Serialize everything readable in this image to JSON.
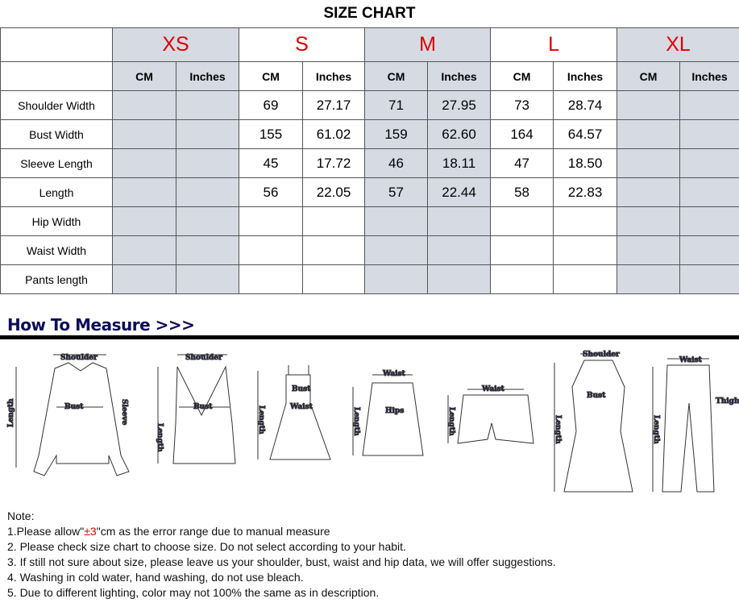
{
  "title": "SIZE CHART",
  "sizes": [
    "XS",
    "S",
    "M",
    "L",
    "XL"
  ],
  "units": [
    "CM",
    "Inches"
  ],
  "rows": [
    {
      "label": "Shoulder Width",
      "values": [
        "",
        "",
        "69",
        "27.17",
        "71",
        "27.95",
        "73",
        "28.74",
        "",
        ""
      ]
    },
    {
      "label": "Bust Width",
      "values": [
        "",
        "",
        "155",
        "61.02",
        "159",
        "62.60",
        "164",
        "64.57",
        "",
        ""
      ]
    },
    {
      "label": "Sleeve Length",
      "values": [
        "",
        "",
        "45",
        "17.72",
        "46",
        "18.11",
        "47",
        "18.50",
        "",
        ""
      ]
    },
    {
      "label": "Length",
      "values": [
        "",
        "",
        "56",
        "22.05",
        "57",
        "22.44",
        "58",
        "22.83",
        "",
        ""
      ]
    },
    {
      "label": "Hip Width",
      "values": [
        "",
        "",
        "",
        "",
        "",
        "",
        "",
        "",
        "",
        ""
      ]
    },
    {
      "label": "Waist Width",
      "values": [
        "",
        "",
        "",
        "",
        "",
        "",
        "",
        "",
        "",
        ""
      ]
    },
    {
      "label": "Pants length",
      "values": [
        "",
        "",
        "",
        "",
        "",
        "",
        "",
        "",
        "",
        ""
      ]
    }
  ],
  "how_to_measure": "How To Measure >>>",
  "illustration_labels": [
    "Shoulder",
    "Bust",
    "Sleeve",
    "Length",
    "Waist",
    "Hips",
    "Thigh"
  ],
  "notes": {
    "heading": "Note:",
    "n1_pre": "1.Please allow\"",
    "n1_red": "±3",
    "n1_post": "\"cm as the error range due to manual measure",
    "n2": "2. Please check size chart to choose size. Do not select according to your habit.",
    "n3": "3. If still not sure about size, please leave us your shoulder, bust, waist and hip data, we will offer suggestions.",
    "n4": "4. Washing in cold water, hand washing, do not use bleach.",
    "n5": "5. Due to different lighting, color may not 100% the same as in description."
  },
  "colors": {
    "size_label": "#e00000",
    "shaded_column": "#d6dae3",
    "heading": "#0d0d5a"
  }
}
